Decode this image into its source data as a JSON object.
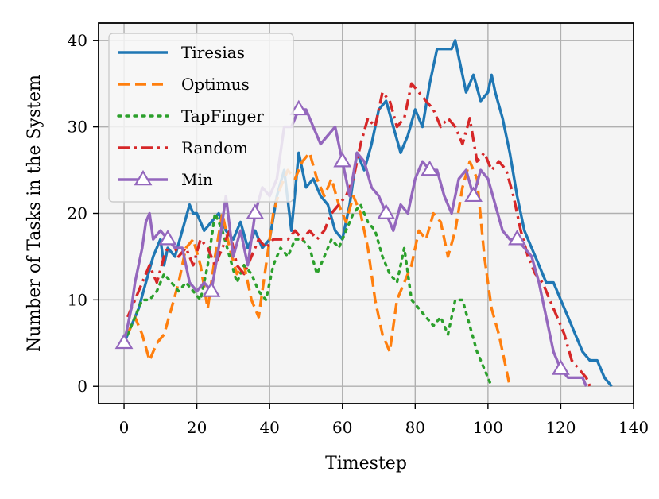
{
  "chart_data": {
    "type": "line",
    "title": "",
    "xlabel": "Timestep",
    "ylabel": "Number of Tasks in the System",
    "xlim": [
      -7,
      140
    ],
    "ylim": [
      -2,
      42
    ],
    "xticks": [
      0,
      20,
      40,
      60,
      80,
      100,
      120,
      140
    ],
    "yticks": [
      0,
      10,
      20,
      30,
      40
    ],
    "grid": true,
    "legend_position": "top-left",
    "colors": {
      "Tiresias": "#1f77b4",
      "Optimus": "#ff7f0e",
      "TapFinger": "#2ca02c",
      "Random": "#d62728",
      "Min": "#9467bd",
      "plot_background": "#f4f4f4"
    },
    "series": [
      {
        "name": "Tiresias",
        "style": "solid",
        "marker": "none",
        "x": [
          0,
          2,
          4,
          6,
          8,
          10,
          11,
          12,
          14,
          16,
          18,
          19,
          20,
          22,
          24,
          26,
          28,
          30,
          32,
          34,
          36,
          38,
          40,
          42,
          44,
          46,
          48,
          50,
          52,
          54,
          56,
          58,
          60,
          62,
          64,
          66,
          68,
          70,
          72,
          74,
          76,
          78,
          80,
          82,
          84,
          86,
          88,
          90,
          91,
          92,
          94,
          96,
          98,
          100,
          101,
          102,
          104,
          106,
          108,
          110,
          112,
          114,
          116,
          118,
          120,
          122,
          124,
          126,
          128,
          130,
          132,
          134
        ],
        "y": [
          5,
          7,
          9,
          12,
          15,
          17,
          14,
          16,
          15,
          18,
          21,
          20,
          20,
          18,
          19,
          20,
          18,
          17,
          19,
          16,
          18,
          16,
          17,
          22,
          25,
          18,
          27,
          23,
          24,
          22,
          21,
          18,
          17,
          21,
          27,
          25,
          28,
          32,
          33,
          30,
          27,
          29,
          32,
          30,
          35,
          39,
          39,
          39,
          40,
          38,
          34,
          36,
          33,
          34,
          36,
          34,
          31,
          27,
          22,
          18,
          16,
          14,
          12,
          12,
          10,
          8,
          6,
          4,
          3,
          3,
          1,
          0
        ]
      },
      {
        "name": "Optimus",
        "style": "dashed",
        "marker": "none",
        "x": [
          1,
          3,
          5,
          7,
          9,
          11,
          13,
          15,
          17,
          19,
          21,
          23,
          25,
          27,
          29,
          31,
          33,
          35,
          37,
          39,
          41,
          43,
          45,
          47,
          49,
          51,
          53,
          55,
          57,
          59,
          61,
          63,
          65,
          67,
          69,
          71,
          73,
          75,
          77,
          79,
          81,
          83,
          85,
          87,
          89,
          91,
          93,
          95,
          97,
          99,
          101,
          103,
          105,
          106
        ],
        "y": [
          6,
          8,
          6,
          3,
          5,
          6,
          9,
          12,
          16,
          17,
          14,
          9,
          15,
          20,
          16,
          13,
          14,
          10,
          8,
          14,
          20,
          23,
          25,
          24,
          26,
          27,
          24,
          22,
          24,
          21,
          19,
          22,
          20,
          16,
          10,
          6,
          4,
          10,
          12,
          14,
          18,
          17,
          20,
          19,
          15,
          18,
          23,
          26,
          24,
          15,
          9,
          6,
          2,
          0
        ]
      },
      {
        "name": "TapFinger",
        "style": "dotted",
        "marker": "none",
        "x": [
          1,
          3,
          5,
          7,
          9,
          11,
          13,
          15,
          17,
          19,
          21,
          23,
          25,
          27,
          29,
          31,
          33,
          35,
          37,
          39,
          41,
          43,
          45,
          47,
          49,
          51,
          53,
          55,
          57,
          59,
          61,
          63,
          65,
          67,
          69,
          71,
          73,
          75,
          77,
          79,
          81,
          83,
          85,
          87,
          89,
          91,
          93,
          95,
          97,
          99,
          101
        ],
        "y": [
          6,
          8,
          10,
          10,
          11,
          13,
          12,
          11,
          12,
          11,
          10,
          14,
          20,
          18,
          15,
          12,
          14,
          13,
          11,
          10,
          14,
          16,
          15,
          17,
          17,
          16,
          13,
          15,
          17,
          16,
          18,
          20,
          21,
          19,
          18,
          15,
          13,
          12,
          16,
          10,
          9,
          8,
          7,
          8,
          6,
          10,
          10,
          7,
          4,
          2,
          0
        ]
      },
      {
        "name": "Random",
        "style": "dashdot",
        "marker": "none",
        "x": [
          1,
          3,
          5,
          7,
          9,
          11,
          13,
          15,
          17,
          19,
          21,
          23,
          25,
          27,
          29,
          31,
          33,
          35,
          37,
          39,
          41,
          43,
          45,
          47,
          49,
          51,
          53,
          55,
          57,
          59,
          61,
          63,
          65,
          67,
          69,
          71,
          73,
          75,
          77,
          79,
          81,
          83,
          85,
          87,
          89,
          91,
          93,
          95,
          97,
          99,
          101,
          103,
          105,
          107,
          109,
          111,
          113,
          115,
          117,
          119,
          121,
          123,
          125,
          127,
          128
        ],
        "y": [
          8,
          10,
          12,
          14,
          12,
          15,
          17,
          15,
          16,
          14,
          17,
          16,
          14,
          16,
          18,
          14,
          13,
          15,
          17,
          16,
          17,
          17,
          17,
          18,
          17,
          18,
          17,
          18,
          20,
          21,
          22,
          24,
          28,
          31,
          30,
          34,
          33,
          30,
          31,
          35,
          34,
          33,
          32,
          30,
          31,
          30,
          28,
          31,
          26,
          27,
          25,
          26,
          25,
          22,
          18,
          15,
          13,
          12,
          10,
          8,
          6,
          3,
          2,
          1,
          0
        ]
      },
      {
        "name": "Min",
        "style": "solid",
        "marker": "triangle",
        "marker_x": [
          0,
          12,
          24,
          36,
          48,
          60,
          72,
          84,
          96,
          108,
          120
        ],
        "x": [
          0,
          2,
          3,
          5,
          6,
          7,
          8,
          10,
          12,
          14,
          16,
          18,
          20,
          22,
          24,
          26,
          28,
          30,
          32,
          34,
          36,
          38,
          40,
          42,
          44,
          46,
          48,
          49,
          50,
          52,
          54,
          56,
          58,
          60,
          62,
          64,
          66,
          68,
          70,
          72,
          74,
          76,
          78,
          80,
          82,
          84,
          86,
          88,
          90,
          92,
          94,
          96,
          98,
          100,
          102,
          104,
          106,
          108,
          110,
          112,
          114,
          116,
          118,
          120,
          122,
          124,
          126,
          127
        ],
        "y": [
          5,
          9,
          12,
          16,
          19,
          20,
          17,
          18,
          17,
          16,
          16,
          12,
          11,
          12,
          11,
          16,
          22,
          15,
          18,
          14,
          20,
          23,
          22,
          24,
          30,
          30,
          32,
          32,
          32,
          30,
          28,
          29,
          30,
          26,
          22,
          27,
          26,
          23,
          22,
          20,
          18,
          21,
          20,
          24,
          26,
          25,
          25,
          22,
          20,
          24,
          25,
          22,
          25,
          24,
          21,
          18,
          17,
          17,
          16,
          15,
          12,
          8,
          4,
          2,
          1,
          1,
          1,
          0
        ]
      }
    ]
  }
}
